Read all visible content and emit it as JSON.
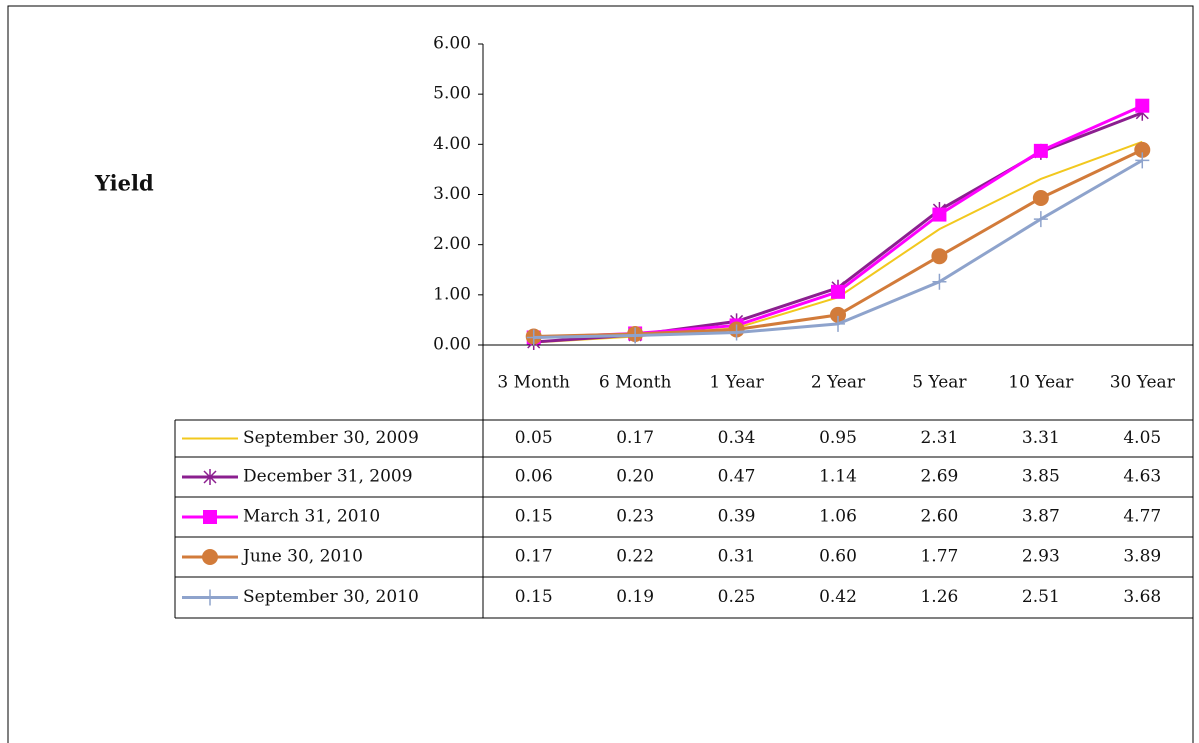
{
  "chart_data": {
    "type": "line",
    "y_label": "Yield",
    "categories": [
      "3 Month",
      "6 Month",
      "1 Year",
      "2 Year",
      "5 Year",
      "10 Year",
      "30 Year"
    ],
    "ylim": [
      0,
      6
    ],
    "yticks": [
      {
        "value": 0,
        "label": "0.00"
      },
      {
        "value": 1,
        "label": "1.00"
      },
      {
        "value": 2,
        "label": "2.00"
      },
      {
        "value": 3,
        "label": "3.00"
      },
      {
        "value": 4,
        "label": "4.00"
      },
      {
        "value": 5,
        "label": "5.00"
      },
      {
        "value": 6,
        "label": "6.00"
      }
    ],
    "series": [
      {
        "name": "September 30, 2009",
        "color": "#f2c81e",
        "marker": "none",
        "values": [
          0.05,
          0.17,
          0.34,
          0.95,
          2.31,
          3.31,
          4.05
        ],
        "value_labels": [
          "0.05",
          "0.17",
          "0.34",
          "0.95",
          "2.31",
          "3.31",
          "4.05"
        ]
      },
      {
        "name": "December 31, 2009",
        "color": "#8b1f8f",
        "marker": "star",
        "values": [
          0.06,
          0.2,
          0.47,
          1.14,
          2.69,
          3.85,
          4.63
        ],
        "value_labels": [
          "0.06",
          "0.20",
          "0.47",
          "1.14",
          "2.69",
          "3.85",
          "4.63"
        ]
      },
      {
        "name": "March 31, 2010",
        "color": "#ff00ff",
        "marker": "square",
        "values": [
          0.15,
          0.23,
          0.39,
          1.06,
          2.6,
          3.87,
          4.77
        ],
        "value_labels": [
          "0.15",
          "0.23",
          "0.39",
          "1.06",
          "2.60",
          "3.87",
          "4.77"
        ]
      },
      {
        "name": "June 30, 2010",
        "color": "#d27b3a",
        "marker": "circle",
        "values": [
          0.17,
          0.22,
          0.31,
          0.6,
          1.77,
          2.93,
          3.89
        ],
        "value_labels": [
          "0.17",
          "0.22",
          "0.31",
          "0.60",
          "1.77",
          "2.93",
          "3.89"
        ]
      },
      {
        "name": "September 30, 2010",
        "color": "#8ea3cc",
        "marker": "plus",
        "values": [
          0.15,
          0.19,
          0.25,
          0.42,
          1.26,
          2.51,
          3.68
        ],
        "value_labels": [
          "0.15",
          "0.19",
          "0.25",
          "0.42",
          "1.26",
          "2.51",
          "3.68"
        ]
      }
    ]
  }
}
